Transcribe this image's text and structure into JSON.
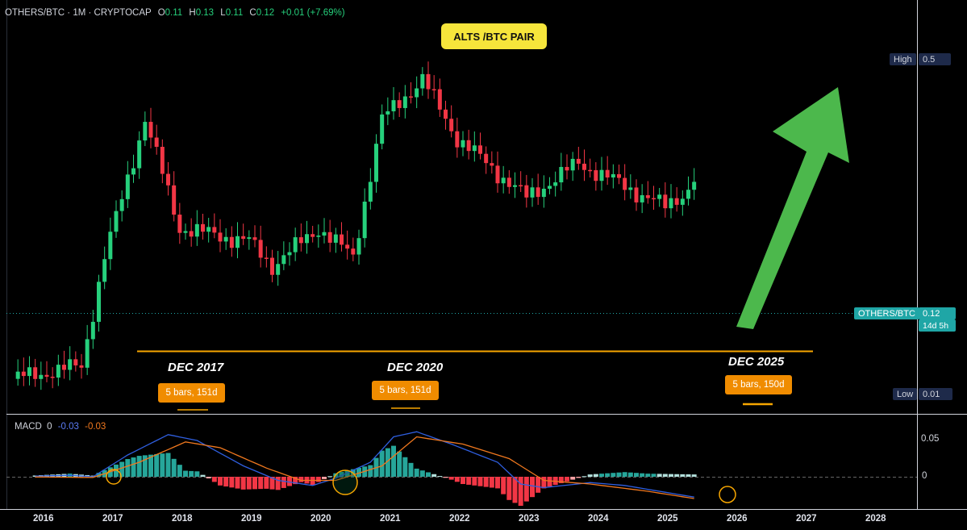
{
  "header": {
    "symbol": "OTHERS/BTC · 1M · CRYPTOCAP",
    "open_label": "O",
    "open": "0.11",
    "high_label": "H",
    "high": "0.13",
    "low_label": "L",
    "low": "0.11",
    "close_label": "C",
    "close": "0.12",
    "change": "+0.01 (+7.69%)"
  },
  "annotation_title": "ALTS /BTC PAIR",
  "price_axis": {
    "high_label": "High",
    "high_value": "0.5",
    "low_label": "Low",
    "low_value": "0.01",
    "symbol_tag": "OTHERS/BTC",
    "current_value": "0.12",
    "countdown": "14d 5h"
  },
  "periods": [
    {
      "label": "DEC 2017",
      "badge": "5 bars, 151d"
    },
    {
      "label": "DEC 2020",
      "badge": "5 bars, 151d"
    },
    {
      "label": "DEC 2025",
      "badge": "5 bars, 150d"
    }
  ],
  "macd": {
    "label": "MACD",
    "v0": "0",
    "v1": "-0.03",
    "v2": "-0.03",
    "axis_top": "0.05",
    "axis_zero": "0"
  },
  "time_axis": [
    "2016",
    "2017",
    "2018",
    "2019",
    "2020",
    "2021",
    "2022",
    "2023",
    "2024",
    "2025",
    "2026",
    "2027",
    "2028"
  ],
  "colors": {
    "bull": "#26d07c",
    "bear": "#f23645",
    "support": "#f7a600",
    "arrow": "#4cb84c",
    "macd_line": "#2f5fe0",
    "signal_line": "#f0781e",
    "hist_pos": "#26a69a",
    "hist_neg": "#f23645"
  },
  "chart_data": {
    "type": "candlestick",
    "symbol": "OTHERS/BTC",
    "timeframe": "1M",
    "ylim": [
      0.01,
      0.5
    ],
    "scale": "log",
    "monthly_close": [
      {
        "x": "2016-01",
        "y": 0.012
      },
      {
        "x": "2016-07",
        "y": 0.013
      },
      {
        "x": "2017-01",
        "y": 0.014
      },
      {
        "x": "2017-05",
        "y": 0.05
      },
      {
        "x": "2017-12",
        "y": 0.25
      },
      {
        "x": "2018-06",
        "y": 0.07
      },
      {
        "x": "2019-06",
        "y": 0.06
      },
      {
        "x": "2019-10",
        "y": 0.045
      },
      {
        "x": "2020-06",
        "y": 0.07
      },
      {
        "x": "2020-12",
        "y": 0.05
      },
      {
        "x": "2021-05",
        "y": 0.25
      },
      {
        "x": "2021-12",
        "y": 0.4
      },
      {
        "x": "2022-06",
        "y": 0.2
      },
      {
        "x": "2023-06",
        "y": 0.1
      },
      {
        "x": "2024-03",
        "y": 0.15
      },
      {
        "x": "2025-06",
        "y": 0.09
      },
      {
        "x": "2025-10",
        "y": 0.11
      },
      {
        "x": "2025-11",
        "y": 0.12
      }
    ],
    "support_level": 0.045,
    "macd": {
      "macd": -0.03,
      "signal": -0.03,
      "hist": 0
    }
  }
}
